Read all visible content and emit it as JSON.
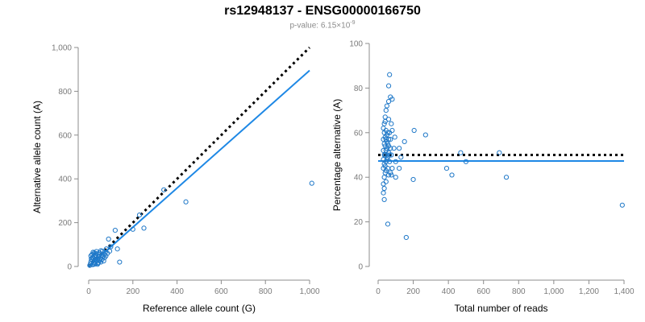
{
  "title": "rs12948137 - ENSG00000166750",
  "subtitle": {
    "prefix": "p-value: 6.15×10",
    "exponent": "-9"
  },
  "colors": {
    "points": "#1f78c8",
    "fit_line": "#1e88e5",
    "reference_line": "#000000",
    "axis": "#8c8c8c"
  },
  "chart_data": [
    {
      "type": "scatter",
      "xlabel": "Reference allele count (G)",
      "ylabel": "Alternative allele count (A)",
      "xlim": [
        0,
        1000
      ],
      "ylim": [
        0,
        1000
      ],
      "x_ticks": [
        0,
        200,
        400,
        600,
        800,
        1000
      ],
      "x_tick_labels": [
        "0",
        "200",
        "400",
        "600",
        "800",
        "1,000"
      ],
      "y_ticks": [
        0,
        200,
        400,
        600,
        800,
        1000
      ],
      "y_tick_labels": [
        "0",
        "200",
        "400",
        "600",
        "800",
        "1,000"
      ],
      "grid": false,
      "points": [
        [
          5,
          5
        ],
        [
          8,
          12
        ],
        [
          10,
          22
        ],
        [
          12,
          35
        ],
        [
          15,
          55
        ],
        [
          18,
          8
        ],
        [
          20,
          40
        ],
        [
          22,
          18
        ],
        [
          25,
          62
        ],
        [
          28,
          30
        ],
        [
          30,
          12
        ],
        [
          32,
          48
        ],
        [
          35,
          25
        ],
        [
          38,
          58
        ],
        [
          40,
          35
        ],
        [
          42,
          15
        ],
        [
          45,
          45
        ],
        [
          48,
          28
        ],
        [
          50,
          62
        ],
        [
          52,
          38
        ],
        [
          55,
          20
        ],
        [
          58,
          50
        ],
        [
          60,
          32
        ],
        [
          62,
          70
        ],
        [
          65,
          45
        ],
        [
          68,
          25
        ],
        [
          70,
          55
        ],
        [
          72,
          40
        ],
        [
          75,
          65
        ],
        [
          78,
          48
        ],
        [
          80,
          80
        ],
        [
          85,
          60
        ],
        [
          90,
          125
        ],
        [
          95,
          70
        ],
        [
          100,
          90
        ],
        [
          120,
          165
        ],
        [
          130,
          80
        ],
        [
          140,
          20
        ],
        [
          200,
          170
        ],
        [
          230,
          235
        ],
        [
          250,
          175
        ],
        [
          340,
          350
        ],
        [
          440,
          295
        ],
        [
          1010,
          380
        ],
        [
          15,
          30
        ],
        [
          25,
          10
        ],
        [
          35,
          68
        ],
        [
          10,
          48
        ],
        [
          20,
          65
        ],
        [
          30,
          60
        ],
        [
          40,
          10
        ],
        [
          18,
          42
        ],
        [
          28,
          52
        ],
        [
          45,
          18
        ],
        [
          55,
          72
        ]
      ],
      "lines": [
        {
          "style": "dotted",
          "color": "#000000",
          "from": [
            0,
            0
          ],
          "to": [
            1000,
            1000
          ]
        },
        {
          "style": "solid",
          "color": "#1e88e5",
          "from": [
            0,
            0
          ],
          "to": [
            1000,
            895
          ]
        }
      ]
    },
    {
      "type": "scatter",
      "xlabel": "Total number of reads",
      "ylabel": "Percentage alternative (A)",
      "xlim": [
        0,
        1400
      ],
      "ylim": [
        0,
        100
      ],
      "x_ticks": [
        0,
        200,
        400,
        600,
        800,
        1000,
        1200,
        1400
      ],
      "x_tick_labels": [
        "0",
        "200",
        "400",
        "600",
        "800",
        "1,000",
        "1,200",
        "1,400"
      ],
      "y_ticks": [
        0,
        20,
        40,
        60,
        80,
        100
      ],
      "y_tick_labels": [
        "0",
        "20",
        "40",
        "60",
        "80",
        "100"
      ],
      "grid": false,
      "points": [
        [
          30,
          33
        ],
        [
          30,
          37
        ],
        [
          30,
          44
        ],
        [
          30,
          48
        ],
        [
          30,
          52
        ],
        [
          30,
          57
        ],
        [
          30,
          62
        ],
        [
          35,
          35
        ],
        [
          35,
          40
        ],
        [
          35,
          46
        ],
        [
          35,
          50
        ],
        [
          35,
          55
        ],
        [
          35,
          60
        ],
        [
          35,
          64
        ],
        [
          40,
          42
        ],
        [
          40,
          45
        ],
        [
          40,
          50
        ],
        [
          40,
          54
        ],
        [
          40,
          58
        ],
        [
          40,
          65
        ],
        [
          40,
          67
        ],
        [
          45,
          38
        ],
        [
          45,
          43
        ],
        [
          45,
          47
        ],
        [
          45,
          52
        ],
        [
          45,
          57
        ],
        [
          45,
          61
        ],
        [
          45,
          70
        ],
        [
          50,
          48
        ],
        [
          50,
          50
        ],
        [
          50,
          53
        ],
        [
          50,
          56
        ],
        [
          50,
          59
        ],
        [
          50,
          72
        ],
        [
          55,
          44
        ],
        [
          55,
          49
        ],
        [
          55,
          55
        ],
        [
          55,
          60
        ],
        [
          55,
          19
        ],
        [
          60,
          51
        ],
        [
          60,
          54
        ],
        [
          60,
          57
        ],
        [
          60,
          66
        ],
        [
          60,
          74
        ],
        [
          60,
          81
        ],
        [
          65,
          47
        ],
        [
          65,
          50
        ],
        [
          65,
          86
        ],
        [
          65,
          60
        ],
        [
          70,
          42
        ],
        [
          70,
          53
        ],
        [
          70,
          57
        ],
        [
          70,
          76
        ],
        [
          75,
          41
        ],
        [
          75,
          50
        ],
        [
          75,
          64
        ],
        [
          80,
          44
        ],
        [
          80,
          61
        ],
        [
          80,
          75
        ],
        [
          90,
          53
        ],
        [
          95,
          58
        ],
        [
          100,
          47
        ],
        [
          120,
          44
        ],
        [
          120,
          53
        ],
        [
          130,
          49
        ],
        [
          150,
          56
        ],
        [
          160,
          13
        ],
        [
          200,
          39
        ],
        [
          205,
          61
        ],
        [
          270,
          59
        ],
        [
          470,
          51
        ],
        [
          500,
          47
        ],
        [
          690,
          51
        ],
        [
          730,
          40
        ],
        [
          390,
          44
        ],
        [
          420,
          41
        ],
        [
          1390,
          27.5
        ],
        [
          100,
          40
        ],
        [
          60,
          41
        ],
        [
          35,
          30
        ]
      ],
      "lines": [
        {
          "style": "dotted",
          "color": "#000000",
          "from": [
            0,
            50
          ],
          "to": [
            1400,
            50
          ]
        },
        {
          "style": "solid",
          "color": "#1e88e5",
          "from": [
            0,
            47.3
          ],
          "to": [
            1400,
            47.3
          ]
        }
      ]
    }
  ]
}
